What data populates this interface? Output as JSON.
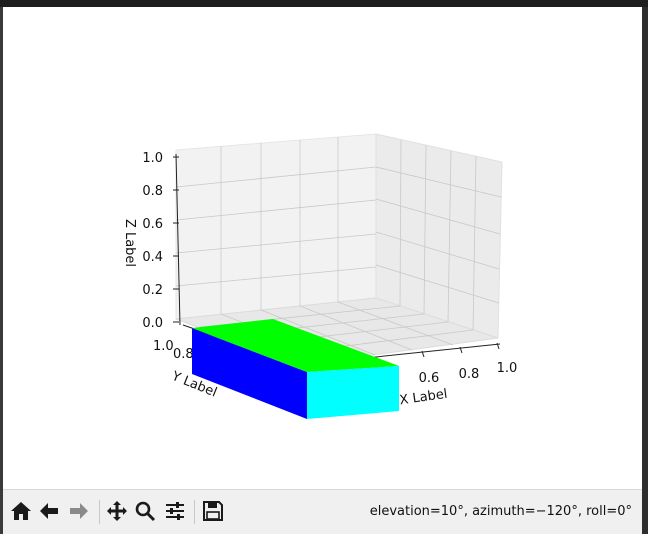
{
  "axes": {
    "xlabel": "X Label",
    "ylabel": "Y Label",
    "zlabel": "Z Label",
    "x_ticks": [
      "0.6",
      "0.8",
      "1.0"
    ],
    "y_ticks": [
      "1.0",
      "0.8"
    ],
    "z_ticks": [
      "0.0",
      "0.2",
      "0.4",
      "0.6",
      "0.8",
      "1.0"
    ]
  },
  "colors": {
    "top_face": "#00ff00",
    "side_face": "#0000ff",
    "end_face": "#00ffff",
    "pane": "#f2f2f2"
  },
  "toolbar": {
    "home_icon": "home-icon",
    "back_icon": "arrow-left-icon",
    "forward_icon": "arrow-right-icon",
    "pan_icon": "move-icon",
    "zoom_icon": "magnifier-icon",
    "configure_icon": "sliders-icon",
    "save_icon": "floppy-disk-icon",
    "status": "elevation=10°, azimuth=−120°, roll=0°"
  }
}
